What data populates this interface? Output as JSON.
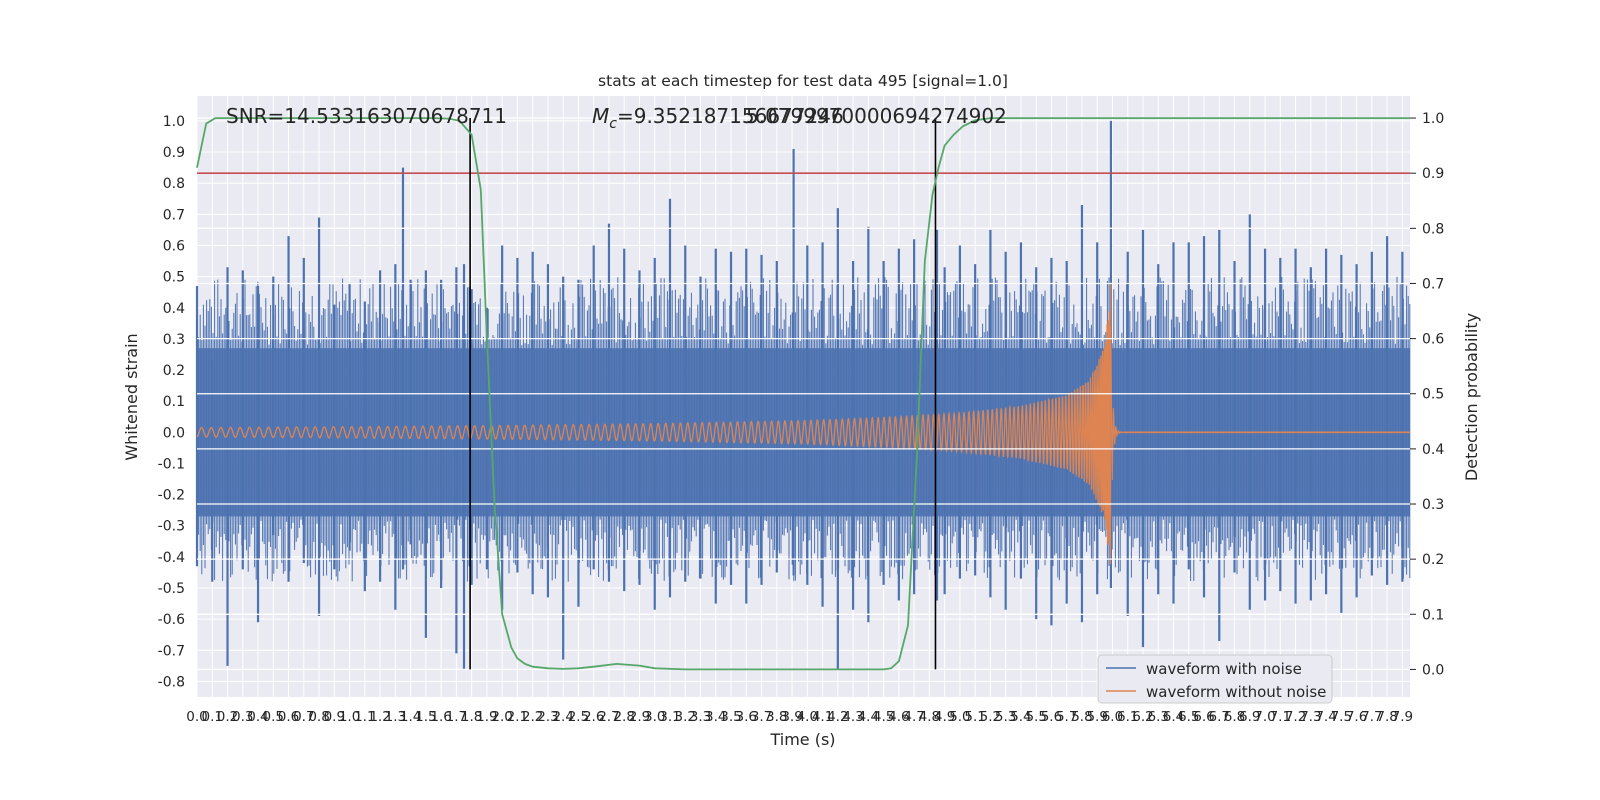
{
  "chart_data": {
    "type": "line",
    "title": "stats at each timestep for test data 495 [signal=1.0]",
    "xlabel": "Time (s)",
    "ylabel": "Whitened strain",
    "y2label": "Detection probability",
    "xlim": [
      0.0,
      7.95
    ],
    "ylim": [
      -0.85,
      1.08
    ],
    "y2lim": [
      -0.05,
      1.04
    ],
    "x_ticks": [
      "0.0",
      "0.1",
      "0.2",
      "0.3",
      "0.4",
      "0.5",
      "0.6",
      "0.7",
      "0.8",
      "0.9",
      "1.0",
      "1.1",
      "1.2",
      "1.3",
      "1.4",
      "1.5",
      "1.6",
      "1.7",
      "1.8",
      "1.9",
      "2.0",
      "2.1",
      "2.2",
      "2.3",
      "2.4",
      "2.5",
      "2.6",
      "2.7",
      "2.8",
      "2.9",
      "3.0",
      "3.1",
      "3.2",
      "3.3",
      "3.4",
      "3.5",
      "3.6",
      "3.7",
      "3.8",
      "3.9",
      "4.0",
      "4.1",
      "4.2",
      "4.3",
      "4.4",
      "4.5",
      "4.6",
      "4.7",
      "4.8",
      "4.9",
      "5.0",
      "5.1",
      "5.2",
      "5.3",
      "5.4",
      "5.5",
      "5.6",
      "5.7",
      "5.8",
      "5.9",
      "6.0",
      "6.1",
      "6.2",
      "6.3",
      "6.4",
      "6.5",
      "6.6",
      "6.7",
      "6.8",
      "6.9",
      "7.0",
      "7.1",
      "7.2",
      "7.3",
      "7.4",
      "7.5",
      "7.6",
      "7.7",
      "7.8",
      "7.9"
    ],
    "y_ticks": [
      "-0.8",
      "-0.7",
      "-0.6",
      "-0.5",
      "-0.4",
      "-0.3",
      "-0.2",
      "-0.1",
      "0.0",
      "0.1",
      "0.2",
      "0.3",
      "0.4",
      "0.5",
      "0.6",
      "0.7",
      "0.8",
      "0.9",
      "1.0"
    ],
    "y2_ticks": [
      "0.0",
      "0.1",
      "0.2",
      "0.3",
      "0.4",
      "0.5",
      "0.6",
      "0.7",
      "0.8",
      "0.9",
      "1.0"
    ],
    "annotations": {
      "snr": "SNR=14.533163070678711",
      "mc_symbol": "M",
      "mc_sub": "c",
      "mc_value": "=9.352187156677246",
      "overlap_value": "5.0799970000694274902"
    },
    "threshold": {
      "value": 0.9,
      "axis": "y2",
      "color": "#c44e52"
    },
    "vlines": [
      1.79,
      4.84
    ],
    "series": [
      {
        "name": "waveform with noise",
        "color": "#4c72b0",
        "axis": "y",
        "kind": "noise",
        "envelope": [
          0.27,
          -0.27
        ],
        "spikes": [
          [
            0.0,
            0.47,
            -0.43
          ],
          [
            0.1,
            0.23,
            -0.48
          ],
          [
            0.2,
            0.53,
            -0.75
          ],
          [
            0.3,
            0.52,
            -0.44
          ],
          [
            0.4,
            0.47,
            -0.61
          ],
          [
            0.5,
            0.5,
            -0.33
          ],
          [
            0.6,
            0.63,
            -0.48
          ],
          [
            0.7,
            0.56,
            -0.42
          ],
          [
            0.8,
            0.69,
            -0.59
          ],
          [
            0.9,
            0.41,
            -0.44
          ],
          [
            1.0,
            0.48,
            -0.38
          ],
          [
            1.1,
            0.42,
            -0.51
          ],
          [
            1.2,
            0.52,
            -0.48
          ],
          [
            1.3,
            0.54,
            -0.57
          ],
          [
            1.35,
            0.85,
            -0.44
          ],
          [
            1.4,
            0.49,
            -0.36
          ],
          [
            1.5,
            0.52,
            -0.66
          ],
          [
            1.6,
            0.49,
            -0.5
          ],
          [
            1.7,
            0.53,
            -0.71
          ],
          [
            1.75,
            0.54,
            -0.76
          ],
          [
            1.8,
            0.46,
            -0.49
          ],
          [
            1.9,
            0.4,
            -0.44
          ],
          [
            2.0,
            0.6,
            -0.57
          ],
          [
            2.1,
            0.56,
            -0.45
          ],
          [
            2.2,
            0.58,
            -0.52
          ],
          [
            2.3,
            0.54,
            -0.53
          ],
          [
            2.4,
            0.5,
            -0.73
          ],
          [
            2.5,
            0.49,
            -0.56
          ],
          [
            2.6,
            0.6,
            -0.44
          ],
          [
            2.7,
            0.67,
            -0.48
          ],
          [
            2.8,
            0.59,
            -0.51
          ],
          [
            2.9,
            0.52,
            -0.49
          ],
          [
            3.0,
            0.56,
            -0.57
          ],
          [
            3.1,
            0.75,
            -0.53
          ],
          [
            3.2,
            0.6,
            -0.48
          ],
          [
            3.3,
            0.5,
            -0.47
          ],
          [
            3.4,
            0.59,
            -0.55
          ],
          [
            3.5,
            0.58,
            -0.49
          ],
          [
            3.6,
            0.59,
            -0.55
          ],
          [
            3.7,
            0.57,
            -0.49
          ],
          [
            3.8,
            0.55,
            -0.45
          ],
          [
            3.91,
            0.91,
            -0.46
          ],
          [
            4.0,
            0.6,
            -0.49
          ],
          [
            4.1,
            0.61,
            -0.56
          ],
          [
            4.2,
            0.72,
            -0.76
          ],
          [
            4.3,
            0.55,
            -0.57
          ],
          [
            4.4,
            0.66,
            -0.61
          ],
          [
            4.5,
            0.55,
            -0.49
          ],
          [
            4.6,
            0.59,
            -0.54
          ],
          [
            4.7,
            0.62,
            -0.52
          ],
          [
            4.85,
            0.65,
            -0.54
          ],
          [
            4.9,
            0.53,
            -0.52
          ],
          [
            5.0,
            0.6,
            -0.47
          ],
          [
            5.1,
            0.54,
            -0.46
          ],
          [
            5.2,
            0.65,
            -0.53
          ],
          [
            5.3,
            0.58,
            -0.57
          ],
          [
            5.4,
            0.61,
            -0.47
          ],
          [
            5.5,
            0.53,
            -0.6
          ],
          [
            5.6,
            0.56,
            -0.62
          ],
          [
            5.7,
            0.55,
            -0.55
          ],
          [
            5.8,
            0.73,
            -0.61
          ],
          [
            5.9,
            0.61,
            -0.52
          ],
          [
            5.99,
            1.0,
            -0.5
          ],
          [
            6.1,
            0.58,
            -0.59
          ],
          [
            6.2,
            0.65,
            -0.69
          ],
          [
            6.3,
            0.54,
            -0.52
          ],
          [
            6.4,
            0.61,
            -0.55
          ],
          [
            6.5,
            0.61,
            -0.44
          ],
          [
            6.6,
            0.63,
            -0.53
          ],
          [
            6.7,
            0.65,
            -0.67
          ],
          [
            6.8,
            0.55,
            -0.45
          ],
          [
            6.9,
            0.7,
            -0.57
          ],
          [
            7.0,
            0.59,
            -0.54
          ],
          [
            7.1,
            0.56,
            -0.51
          ],
          [
            7.2,
            0.59,
            -0.55
          ],
          [
            7.3,
            0.53,
            -0.54
          ],
          [
            7.4,
            0.59,
            -0.52
          ],
          [
            7.5,
            0.57,
            -0.58
          ],
          [
            7.6,
            0.54,
            -0.53
          ],
          [
            7.7,
            0.58,
            -0.46
          ],
          [
            7.8,
            0.63,
            -0.49
          ],
          [
            7.9,
            0.58,
            -0.48
          ]
        ]
      },
      {
        "name": "waveform without noise",
        "color": "#dd8452",
        "axis": "y",
        "kind": "chirp",
        "merger_time": 5.99,
        "envelope": [
          [
            0.0,
            0.015
          ],
          [
            1.0,
            0.018
          ],
          [
            2.0,
            0.022
          ],
          [
            3.0,
            0.028
          ],
          [
            4.0,
            0.038
          ],
          [
            4.5,
            0.048
          ],
          [
            5.0,
            0.062
          ],
          [
            5.4,
            0.085
          ],
          [
            5.7,
            0.12
          ],
          [
            5.85,
            0.17
          ],
          [
            5.95,
            0.28
          ],
          [
            5.99,
            0.48
          ]
        ]
      },
      {
        "name": "detection probability",
        "color": "#55a868",
        "axis": "y2",
        "kind": "line",
        "x": [
          0.0,
          0.06,
          0.12,
          0.3,
          0.6,
          1.0,
          1.3,
          1.55,
          1.65,
          1.72,
          1.8,
          1.86,
          1.9,
          1.95,
          2.0,
          2.06,
          2.1,
          2.15,
          2.2,
          2.3,
          2.4,
          2.5,
          2.6,
          2.75,
          2.9,
          3.0,
          3.2,
          3.5,
          3.8,
          4.0,
          4.2,
          4.4,
          4.5,
          4.55,
          4.6,
          4.66,
          4.72,
          4.77,
          4.82,
          4.86,
          4.9,
          4.96,
          5.02,
          5.1,
          5.2,
          5.35,
          5.6,
          6.0,
          7.0,
          7.95
        ],
        "y": [
          0.91,
          0.99,
          1.0,
          1.0,
          1.0,
          1.0,
          1.0,
          1.0,
          0.999,
          0.995,
          0.97,
          0.87,
          0.6,
          0.3,
          0.1,
          0.04,
          0.02,
          0.01,
          0.005,
          0.002,
          0.001,
          0.002,
          0.005,
          0.01,
          0.007,
          0.002,
          0.0,
          0.0,
          0.0,
          0.0,
          0.0,
          0.0,
          0.0,
          0.002,
          0.015,
          0.08,
          0.4,
          0.74,
          0.86,
          0.91,
          0.95,
          0.97,
          0.985,
          0.996,
          1.0,
          1.0,
          1.0,
          1.0,
          1.0,
          1.0
        ]
      }
    ],
    "legend": {
      "position": "lower-right",
      "entries": [
        "waveform with noise",
        "waveform without noise"
      ]
    },
    "grid": true,
    "background": "#eaeaf2",
    "vline_color": "#000000"
  }
}
